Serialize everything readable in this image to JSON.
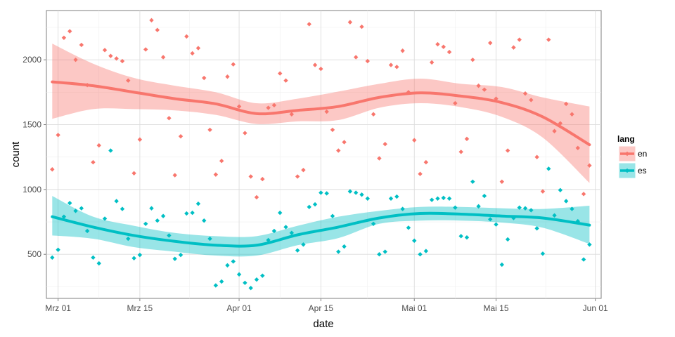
{
  "chart_data": {
    "type": "scatter",
    "title": "",
    "xlabel": "date",
    "ylabel": "count",
    "xlim": [
      "2015-02-27",
      "2015-06-02"
    ],
    "ylim": [
      160,
      2380
    ],
    "grid": true,
    "legend_position": "right",
    "legend_title": "lang",
    "x_ticks": [
      {
        "date": "2015-03-01",
        "label": "Mrz 01"
      },
      {
        "date": "2015-03-15",
        "label": "Mrz 15"
      },
      {
        "date": "2015-04-01",
        "label": "Apr 01"
      },
      {
        "date": "2015-04-15",
        "label": "Apr 15"
      },
      {
        "date": "2015-05-01",
        "label": "Mai 01"
      },
      {
        "date": "2015-05-15",
        "label": "Mai 15"
      },
      {
        "date": "2015-06-01",
        "label": "Jun 01"
      }
    ],
    "y_ticks": [
      500,
      1000,
      1500,
      2000
    ],
    "series": [
      {
        "name": "en",
        "color": "#F8766D",
        "points": [
          [
            "2015-02-28",
            1155
          ],
          [
            "2015-03-01",
            1420
          ],
          [
            "2015-03-02",
            2170
          ],
          [
            "2015-03-03",
            2220
          ],
          [
            "2015-03-04",
            2000
          ],
          [
            "2015-03-05",
            2115
          ],
          [
            "2015-03-06",
            1805
          ],
          [
            "2015-03-07",
            1210
          ],
          [
            "2015-03-08",
            1340
          ],
          [
            "2015-03-09",
            2075
          ],
          [
            "2015-03-10",
            2030
          ],
          [
            "2015-03-11",
            2010
          ],
          [
            "2015-03-12",
            1990
          ],
          [
            "2015-03-13",
            1840
          ],
          [
            "2015-03-14",
            1125
          ],
          [
            "2015-03-15",
            1385
          ],
          [
            "2015-03-16",
            2080
          ],
          [
            "2015-03-17",
            2305
          ],
          [
            "2015-03-18",
            2230
          ],
          [
            "2015-03-19",
            2020
          ],
          [
            "2015-03-20",
            1550
          ],
          [
            "2015-03-21",
            1110
          ],
          [
            "2015-03-22",
            1410
          ],
          [
            "2015-03-23",
            2180
          ],
          [
            "2015-03-24",
            2050
          ],
          [
            "2015-03-25",
            2090
          ],
          [
            "2015-03-26",
            1860
          ],
          [
            "2015-03-27",
            1460
          ],
          [
            "2015-03-28",
            1115
          ],
          [
            "2015-03-29",
            1220
          ],
          [
            "2015-03-30",
            1870
          ],
          [
            "2015-03-31",
            1965
          ],
          [
            "2015-04-01",
            1640
          ],
          [
            "2015-04-02",
            1435
          ],
          [
            "2015-04-03",
            1100
          ],
          [
            "2015-04-04",
            940
          ],
          [
            "2015-04-05",
            1080
          ],
          [
            "2015-04-06",
            1630
          ],
          [
            "2015-04-07",
            1650
          ],
          [
            "2015-04-08",
            1895
          ],
          [
            "2015-04-09",
            1840
          ],
          [
            "2015-04-10",
            1580
          ],
          [
            "2015-04-11",
            1100
          ],
          [
            "2015-04-12",
            1150
          ],
          [
            "2015-04-13",
            2275
          ],
          [
            "2015-04-14",
            1960
          ],
          [
            "2015-04-15",
            1930
          ],
          [
            "2015-04-16",
            1600
          ],
          [
            "2015-04-17",
            1460
          ],
          [
            "2015-04-18",
            1300
          ],
          [
            "2015-04-19",
            1365
          ],
          [
            "2015-04-20",
            2290
          ],
          [
            "2015-04-21",
            2020
          ],
          [
            "2015-04-22",
            2255
          ],
          [
            "2015-04-23",
            1990
          ],
          [
            "2015-04-24",
            1580
          ],
          [
            "2015-04-25",
            1240
          ],
          [
            "2015-04-26",
            1350
          ],
          [
            "2015-04-27",
            1960
          ],
          [
            "2015-04-28",
            1945
          ],
          [
            "2015-04-29",
            2070
          ],
          [
            "2015-04-30",
            1750
          ],
          [
            "2015-05-01",
            1380
          ],
          [
            "2015-05-02",
            1120
          ],
          [
            "2015-05-03",
            1210
          ],
          [
            "2015-05-04",
            1980
          ],
          [
            "2015-05-05",
            2120
          ],
          [
            "2015-05-06",
            2100
          ],
          [
            "2015-05-07",
            2060
          ],
          [
            "2015-05-08",
            1665
          ],
          [
            "2015-05-09",
            1290
          ],
          [
            "2015-05-10",
            1390
          ],
          [
            "2015-05-11",
            2000
          ],
          [
            "2015-05-12",
            1800
          ],
          [
            "2015-05-13",
            1770
          ],
          [
            "2015-05-14",
            2130
          ],
          [
            "2015-05-15",
            1700
          ],
          [
            "2015-05-16",
            1060
          ],
          [
            "2015-05-17",
            1300
          ],
          [
            "2015-05-18",
            2095
          ],
          [
            "2015-05-19",
            2155
          ],
          [
            "2015-05-20",
            1740
          ],
          [
            "2015-05-21",
            1690
          ],
          [
            "2015-05-22",
            1250
          ],
          [
            "2015-05-23",
            985
          ],
          [
            "2015-05-24",
            2155
          ],
          [
            "2015-05-25",
            1450
          ],
          [
            "2015-05-26",
            1510
          ],
          [
            "2015-05-27",
            1660
          ],
          [
            "2015-05-28",
            1580
          ],
          [
            "2015-05-29",
            1320
          ],
          [
            "2015-05-30",
            965
          ],
          [
            "2015-05-31",
            1185
          ]
        ],
        "smooth": {
          "x": [
            "2015-02-28",
            "2015-03-07",
            "2015-03-14",
            "2015-03-21",
            "2015-03-28",
            "2015-04-04",
            "2015-04-11",
            "2015-04-18",
            "2015-04-25",
            "2015-05-02",
            "2015-05-09",
            "2015-05-16",
            "2015-05-23",
            "2015-05-31"
          ],
          "y": [
            1830,
            1800,
            1750,
            1700,
            1660,
            1585,
            1610,
            1640,
            1710,
            1745,
            1720,
            1670,
            1560,
            1345
          ],
          "lower": [
            1545,
            1620,
            1620,
            1610,
            1575,
            1505,
            1525,
            1535,
            1630,
            1665,
            1635,
            1560,
            1400,
            1050
          ],
          "upper": [
            2125,
            1970,
            1860,
            1800,
            1750,
            1665,
            1700,
            1755,
            1815,
            1855,
            1815,
            1790,
            1710,
            1640
          ]
        }
      },
      {
        "name": "es",
        "color": "#00BFC4",
        "points": [
          [
            "2015-02-28",
            475
          ],
          [
            "2015-03-01",
            535
          ],
          [
            "2015-03-02",
            790
          ],
          [
            "2015-03-03",
            895
          ],
          [
            "2015-03-04",
            835
          ],
          [
            "2015-03-05",
            855
          ],
          [
            "2015-03-06",
            680
          ],
          [
            "2015-03-07",
            475
          ],
          [
            "2015-03-08",
            430
          ],
          [
            "2015-03-09",
            775
          ],
          [
            "2015-03-10",
            1300
          ],
          [
            "2015-03-11",
            910
          ],
          [
            "2015-03-12",
            850
          ],
          [
            "2015-03-13",
            620
          ],
          [
            "2015-03-14",
            470
          ],
          [
            "2015-03-15",
            495
          ],
          [
            "2015-03-16",
            735
          ],
          [
            "2015-03-17",
            855
          ],
          [
            "2015-03-18",
            760
          ],
          [
            "2015-03-19",
            795
          ],
          [
            "2015-03-20",
            645
          ],
          [
            "2015-03-21",
            465
          ],
          [
            "2015-03-22",
            495
          ],
          [
            "2015-03-23",
            815
          ],
          [
            "2015-03-24",
            820
          ],
          [
            "2015-03-25",
            890
          ],
          [
            "2015-03-26",
            760
          ],
          [
            "2015-03-27",
            620
          ],
          [
            "2015-03-28",
            260
          ],
          [
            "2015-03-29",
            290
          ],
          [
            "2015-03-30",
            415
          ],
          [
            "2015-03-31",
            445
          ],
          [
            "2015-04-01",
            345
          ],
          [
            "2015-04-02",
            280
          ],
          [
            "2015-04-03",
            240
          ],
          [
            "2015-04-04",
            305
          ],
          [
            "2015-04-05",
            335
          ],
          [
            "2015-04-06",
            610
          ],
          [
            "2015-04-07",
            680
          ],
          [
            "2015-04-08",
            820
          ],
          [
            "2015-04-09",
            710
          ],
          [
            "2015-04-10",
            665
          ],
          [
            "2015-04-11",
            530
          ],
          [
            "2015-04-12",
            575
          ],
          [
            "2015-04-13",
            865
          ],
          [
            "2015-04-14",
            885
          ],
          [
            "2015-04-15",
            975
          ],
          [
            "2015-04-16",
            970
          ],
          [
            "2015-04-17",
            795
          ],
          [
            "2015-04-18",
            520
          ],
          [
            "2015-04-19",
            560
          ],
          [
            "2015-04-20",
            985
          ],
          [
            "2015-04-21",
            975
          ],
          [
            "2015-04-22",
            960
          ],
          [
            "2015-04-23",
            930
          ],
          [
            "2015-04-24",
            735
          ],
          [
            "2015-04-25",
            500
          ],
          [
            "2015-04-26",
            520
          ],
          [
            "2015-04-27",
            930
          ],
          [
            "2015-04-28",
            945
          ],
          [
            "2015-04-29",
            850
          ],
          [
            "2015-04-30",
            705
          ],
          [
            "2015-05-01",
            605
          ],
          [
            "2015-05-02",
            500
          ],
          [
            "2015-05-03",
            525
          ],
          [
            "2015-05-04",
            920
          ],
          [
            "2015-05-05",
            930
          ],
          [
            "2015-05-06",
            935
          ],
          [
            "2015-05-07",
            930
          ],
          [
            "2015-05-08",
            860
          ],
          [
            "2015-05-09",
            640
          ],
          [
            "2015-05-10",
            630
          ],
          [
            "2015-05-11",
            1060
          ],
          [
            "2015-05-12",
            870
          ],
          [
            "2015-05-13",
            950
          ],
          [
            "2015-05-14",
            770
          ],
          [
            "2015-05-15",
            730
          ],
          [
            "2015-05-16",
            420
          ],
          [
            "2015-05-17",
            615
          ],
          [
            "2015-05-18",
            780
          ],
          [
            "2015-05-19",
            860
          ],
          [
            "2015-05-20",
            855
          ],
          [
            "2015-05-21",
            840
          ],
          [
            "2015-05-22",
            700
          ],
          [
            "2015-05-23",
            505
          ],
          [
            "2015-05-24",
            1160
          ],
          [
            "2015-05-25",
            800
          ],
          [
            "2015-05-26",
            995
          ],
          [
            "2015-05-27",
            910
          ],
          [
            "2015-05-28",
            850
          ],
          [
            "2015-05-29",
            755
          ],
          [
            "2015-05-30",
            460
          ],
          [
            "2015-05-31",
            575
          ]
        ],
        "smooth": {
          "x": [
            "2015-02-28",
            "2015-03-07",
            "2015-03-14",
            "2015-03-21",
            "2015-03-28",
            "2015-04-04",
            "2015-04-11",
            "2015-04-18",
            "2015-04-25",
            "2015-05-02",
            "2015-05-09",
            "2015-05-16",
            "2015-05-23",
            "2015-05-31"
          ],
          "y": [
            790,
            710,
            645,
            600,
            570,
            570,
            650,
            710,
            780,
            815,
            810,
            795,
            780,
            725
          ],
          "lower": [
            645,
            620,
            555,
            520,
            490,
            490,
            570,
            625,
            735,
            760,
            760,
            745,
            705,
            580
          ],
          "upper": [
            950,
            790,
            720,
            665,
            640,
            640,
            720,
            790,
            835,
            865,
            865,
            855,
            850,
            875
          ]
        }
      }
    ]
  }
}
